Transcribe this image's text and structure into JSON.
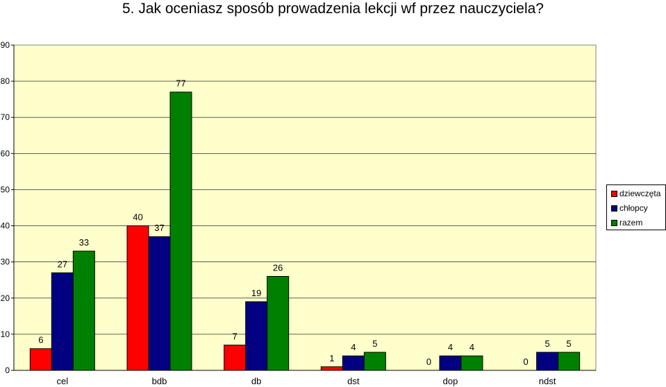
{
  "chart_data": {
    "type": "bar",
    "title": "5. Jak oceniasz sposób prowadzenia lekcji wf przez nauczyciela?",
    "categories": [
      "cel",
      "bdb",
      "db",
      "dst",
      "dop",
      "ndst"
    ],
    "series": [
      {
        "name": "dziewczęta",
        "color": "#ff0000",
        "values": [
          6,
          40,
          7,
          1,
          0,
          0
        ]
      },
      {
        "name": "chłopcy",
        "color": "#000080",
        "values": [
          27,
          37,
          19,
          4,
          4,
          5
        ]
      },
      {
        "name": "razem",
        "color": "#008000",
        "values": [
          33,
          77,
          26,
          5,
          4,
          5
        ]
      }
    ],
    "ylim": [
      0,
      90
    ],
    "yticks": [
      0,
      10,
      20,
      30,
      40,
      50,
      60,
      70,
      80,
      90
    ],
    "grid": true,
    "legend": "right",
    "plot_background": "#ffffcc"
  }
}
